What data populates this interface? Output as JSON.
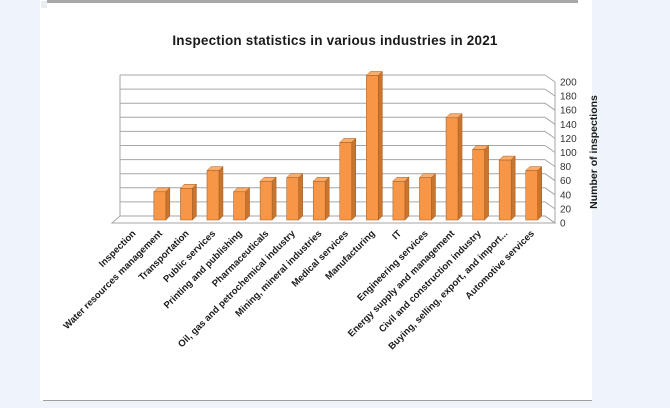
{
  "window": {
    "background_color": "#eef4f9",
    "panel_color": "#ffffff",
    "top_bar_color": "#a8a8a8",
    "bottom_line_color": "#9e9e9e"
  },
  "chart_data": {
    "type": "bar",
    "style": "3d-column",
    "title": "Inspection statistics in various industries in 2021",
    "xlabel": "",
    "ylabel": "Number of inspections",
    "ylim": [
      0,
      200
    ],
    "yticks": [
      0,
      20,
      40,
      60,
      80,
      100,
      120,
      140,
      160,
      180,
      200
    ],
    "grid": true,
    "legend": false,
    "categories": [
      "Inspection",
      "Water resources management",
      "Transportation",
      "Public services",
      "Printing and publishing",
      "Pharmaceuticals",
      "Oil, gas and petrochemical industry",
      "Mining, mineral industries",
      "Medical services",
      "Manufacturing",
      "IT",
      "Engineering services",
      "Energy supply and management",
      "Civil and construction industry",
      "Buying, selling, export, and import...",
      "Automotive services"
    ],
    "values": [
      0,
      40,
      45,
      70,
      40,
      55,
      60,
      55,
      110,
      205,
      55,
      60,
      145,
      100,
      85,
      70
    ],
    "bar_color": "#F79646",
    "bar_side_color": "#C9752E",
    "bar_top_color": "#FBAD6B",
    "bar_edge_color": "#A05A20",
    "gridline_color": "#a6a6a6",
    "axis_text_color": "#333333",
    "category_text_color": "#1a1a1a",
    "title_color": "#1a1a1a"
  }
}
